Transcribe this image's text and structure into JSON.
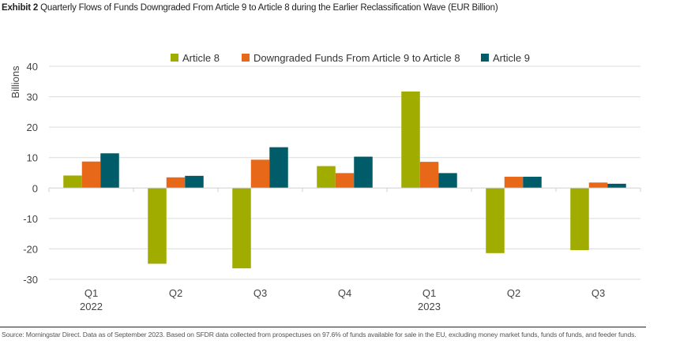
{
  "header": {
    "exhibit_label": "Exhibit 2",
    "title": "Quarterly Flows of Funds Downgraded From Article 9 to Article 8 during the Earlier Reclassification Wave (EUR Billion)"
  },
  "footer": {
    "source": "Source: Morningstar Direct. Data as of September 2023. Based on SFDR data collected from prospectuses on 97.6% of funds available for sale in the EU, excluding money market funds, funds of funds, and feeder funds."
  },
  "chart_data": {
    "type": "bar",
    "title": "Quarterly Flows of Funds Downgraded From Article 9 to Article 8 during the Earlier Reclassification Wave (EUR Billion)",
    "xlabel": "",
    "ylabel": "Billions",
    "ylim": [
      -30,
      40
    ],
    "yticks": [
      40,
      30,
      20,
      10,
      0,
      -10,
      -20,
      -30
    ],
    "grid": true,
    "legend_position": "top",
    "categories": [
      "Q1 2022",
      "Q2",
      "Q3",
      "Q4",
      "Q1 2023",
      "Q2",
      "Q3"
    ],
    "category_labels": [
      {
        "quarter": "Q1",
        "year": "2022"
      },
      {
        "quarter": "Q2",
        "year": ""
      },
      {
        "quarter": "Q3",
        "year": ""
      },
      {
        "quarter": "Q4",
        "year": ""
      },
      {
        "quarter": "Q1",
        "year": "2023"
      },
      {
        "quarter": "Q2",
        "year": ""
      },
      {
        "quarter": "Q3",
        "year": ""
      }
    ],
    "series": [
      {
        "name": "Article 8",
        "color": "#a0ac00",
        "values": [
          4.1,
          -24.9,
          -26.4,
          7.2,
          31.7,
          -21.4,
          -20.4
        ]
      },
      {
        "name": "Downgraded Funds From Article 9 to Article 8",
        "color": "#e8681a",
        "values": [
          8.7,
          3.5,
          9.3,
          4.9,
          8.6,
          3.7,
          1.8
        ]
      },
      {
        "name": "Article 9",
        "color": "#005c69",
        "values": [
          11.4,
          4.0,
          13.4,
          10.3,
          4.9,
          3.7,
          1.4
        ]
      }
    ]
  }
}
